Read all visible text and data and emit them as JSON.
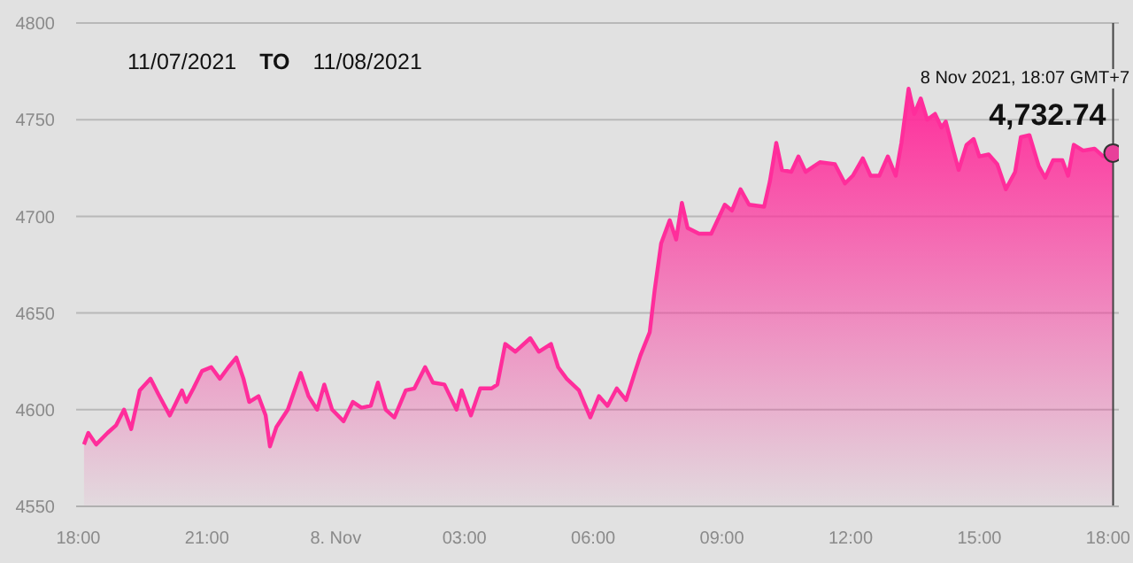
{
  "chart_data": {
    "type": "area",
    "annotations": [
      "11/07/2021",
      "TO",
      "11/08/2021",
      "8 Nov 2021, 18:07 GMT+7",
      {
        "text": "4,732.74",
        "x": "2021-11-08T18:07",
        "y": 4732.74
      }
    ],
    "xlim": [
      "2021-11-07T17:57",
      "2021-11-08T18:15"
    ],
    "xticks": [
      {
        "value": "2021-11-07T18:00",
        "label": "18:00"
      },
      {
        "value": "2021-11-07T21:00",
        "label": "21:00"
      },
      {
        "value": "2021-11-08T00:00",
        "label": "8. Nov"
      },
      {
        "value": "2021-11-08T03:00",
        "label": "03:00"
      },
      {
        "value": "2021-11-08T06:00",
        "label": "06:00"
      },
      {
        "value": "2021-11-08T09:00",
        "label": "09:00"
      },
      {
        "value": "2021-11-08T12:00",
        "label": "12:00"
      },
      {
        "value": "2021-11-08T15:00",
        "label": "15:00"
      },
      {
        "value": "2021-11-08T18:00",
        "label": "18:00"
      }
    ],
    "ylim": [
      4550,
      4800
    ],
    "yticks": [
      4550,
      4600,
      4650,
      4700,
      4750,
      4800
    ],
    "grid": "y",
    "marker": "none",
    "ref_lines": [
      {
        "axis": "x",
        "value": "2021-11-08T18:07",
        "color": "#444444"
      }
    ],
    "series": [
      {
        "color": "#ff2d9b",
        "x": [
          "2021-11-07T18:08",
          "2021-11-07T18:14",
          "2021-11-07T18:25",
          "2021-11-07T18:41",
          "2021-11-07T18:53",
          "2021-11-07T19:04",
          "2021-11-07T19:14",
          "2021-11-07T19:26",
          "2021-11-07T19:41",
          "2021-11-07T19:52",
          "2021-11-07T20:08",
          "2021-11-07T20:25",
          "2021-11-07T20:31",
          "2021-11-07T20:41",
          "2021-11-07T20:53",
          "2021-11-07T21:06",
          "2021-11-07T21:18",
          "2021-11-07T21:30",
          "2021-11-07T21:41",
          "2021-11-07T21:51",
          "2021-11-07T21:59",
          "2021-11-07T22:12",
          "2021-11-07T22:22",
          "2021-11-07T22:28",
          "2021-11-07T22:37",
          "2021-11-07T22:53",
          "2021-11-07T23:11",
          "2021-11-07T23:22",
          "2021-11-07T23:34",
          "2021-11-07T23:44",
          "2021-11-07T23:55",
          "2021-11-08T00:11",
          "2021-11-08T00:24",
          "2021-11-08T00:36",
          "2021-11-08T00:49",
          "2021-11-08T00:59",
          "2021-11-08T01:10",
          "2021-11-08T01:22",
          "2021-11-08T01:38",
          "2021-11-08T01:50",
          "2021-11-08T02:05",
          "2021-11-08T02:16",
          "2021-11-08T02:32",
          "2021-11-08T02:49",
          "2021-11-08T02:56",
          "2021-11-08T03:09",
          "2021-11-08T03:22",
          "2021-11-08T03:38",
          "2021-11-08T03:46",
          "2021-11-08T03:57",
          "2021-11-08T04:11",
          "2021-11-08T04:32",
          "2021-11-08T04:44",
          "2021-11-08T05:01",
          "2021-11-08T05:11",
          "2021-11-08T05:23",
          "2021-11-08T05:40",
          "2021-11-08T05:56",
          "2021-11-08T06:08",
          "2021-11-08T06:20",
          "2021-11-08T06:33",
          "2021-11-08T06:46",
          "2021-11-08T06:58",
          "2021-11-08T07:06",
          "2021-11-08T07:19",
          "2021-11-08T07:26",
          "2021-11-08T07:35",
          "2021-11-08T07:47",
          "2021-11-08T07:56",
          "2021-11-08T08:04",
          "2021-11-08T08:12",
          "2021-11-08T08:28",
          "2021-11-08T08:45",
          "2021-11-08T09:04",
          "2021-11-08T09:14",
          "2021-11-08T09:26",
          "2021-11-08T09:38",
          "2021-11-08T09:59",
          "2021-11-08T10:07",
          "2021-11-08T10:16",
          "2021-11-08T10:24",
          "2021-11-08T10:37",
          "2021-11-08T10:47",
          "2021-11-08T10:57",
          "2021-11-08T11:17",
          "2021-11-08T11:38",
          "2021-11-08T11:52",
          "2021-11-08T12:03",
          "2021-11-08T12:17",
          "2021-11-08T12:28",
          "2021-11-08T12:40",
          "2021-11-08T12:52",
          "2021-11-08T13:03",
          "2021-11-08T13:11",
          "2021-11-08T13:21",
          "2021-11-08T13:29",
          "2021-11-08T13:38",
          "2021-11-08T13:47",
          "2021-11-08T13:58",
          "2021-11-08T14:07",
          "2021-11-08T14:13",
          "2021-11-08T14:23",
          "2021-11-08T14:31",
          "2021-11-08T14:42",
          "2021-11-08T14:52",
          "2021-11-08T15:00",
          "2021-11-08T15:13",
          "2021-11-08T15:25",
          "2021-11-08T15:37",
          "2021-11-08T15:50",
          "2021-11-08T15:58",
          "2021-11-08T16:10",
          "2021-11-08T16:23",
          "2021-11-08T16:32",
          "2021-11-08T16:43",
          "2021-11-08T16:56",
          "2021-11-08T17:04",
          "2021-11-08T17:12",
          "2021-11-08T17:25",
          "2021-11-08T17:41",
          "2021-11-08T17:53",
          "2021-11-08T18:07"
        ],
        "values": [
          4582,
          4588,
          4582,
          4588,
          4592,
          4600,
          4590,
          4610,
          4616,
          4608,
          4597,
          4610,
          4604,
          4611,
          4620,
          4622,
          4616,
          4622,
          4627,
          4616,
          4604,
          4607,
          4597,
          4581,
          4591,
          4600,
          4619,
          4607,
          4600,
          4613,
          4600,
          4594,
          4604,
          4601,
          4602,
          4614,
          4600,
          4596,
          4610,
          4611,
          4622,
          4614,
          4613,
          4600,
          4610,
          4597,
          4611,
          4611,
          4613,
          4634,
          4630,
          4637,
          4630,
          4634,
          4622,
          4616,
          4610,
          4596,
          4607,
          4602,
          4611,
          4605,
          4619,
          4628,
          4640,
          4662,
          4686,
          4698,
          4688,
          4707,
          4694,
          4691,
          4691,
          4706,
          4703,
          4714,
          4706,
          4705,
          4718,
          4738,
          4724,
          4723,
          4731,
          4723,
          4728,
          4727,
          4717,
          4721,
          4730,
          4721,
          4721,
          4731,
          4721,
          4738,
          4766,
          4753,
          4761,
          4750,
          4753,
          4746,
          4749,
          4735,
          4724,
          4737,
          4740,
          4731,
          4732,
          4727,
          4714,
          4723,
          4741,
          4742,
          4726,
          4720,
          4729,
          4729,
          4721,
          4737,
          4734,
          4735,
          4731,
          4732.74
        ]
      },
      {
        "type": "scatter",
        "color": "#e8409a",
        "marker": "circle",
        "x": [
          "2021-11-08T18:07"
        ],
        "values": [
          4732.74
        ]
      }
    ]
  }
}
